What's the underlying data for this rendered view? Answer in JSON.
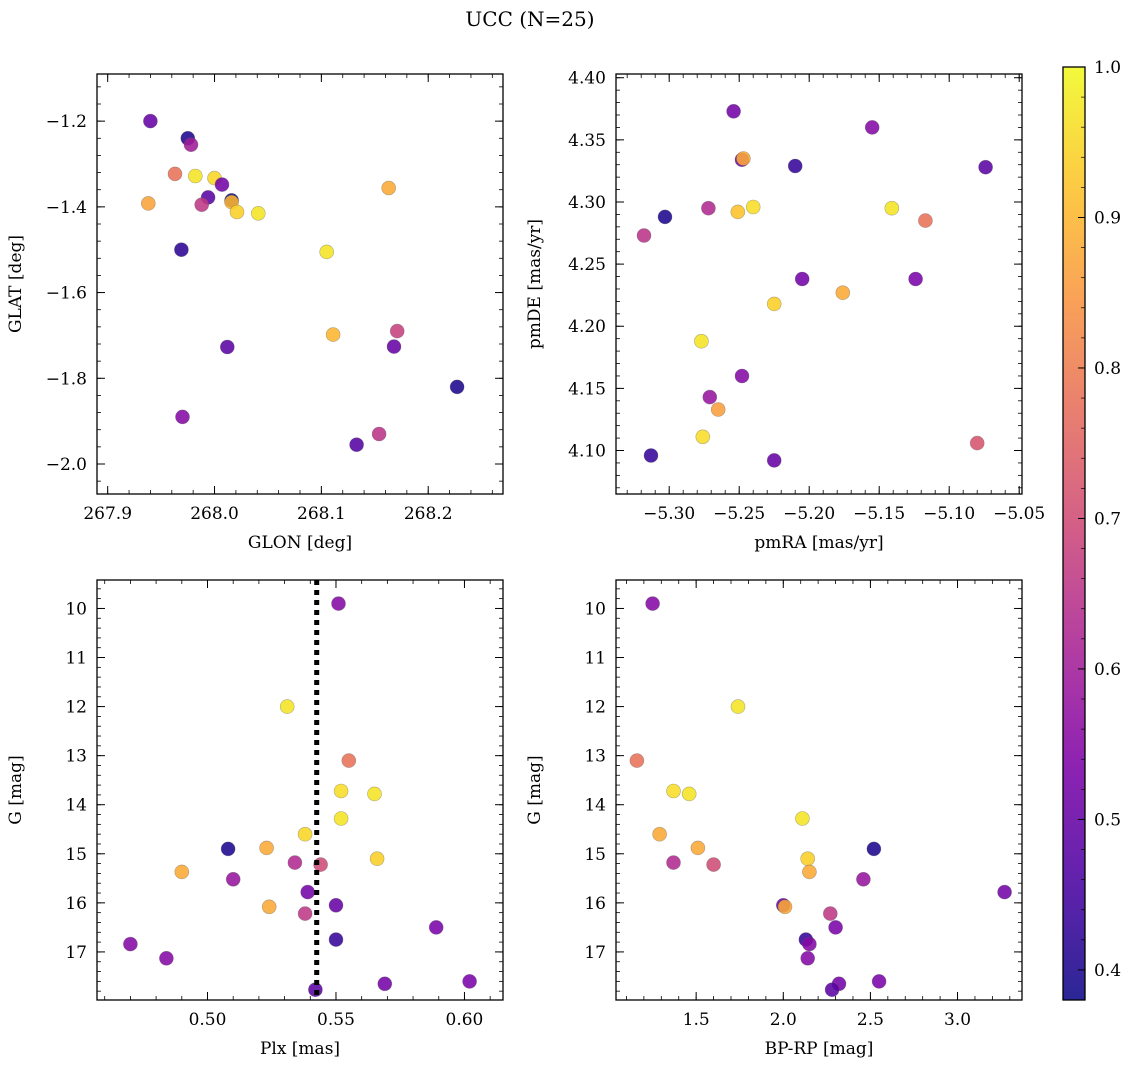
{
  "figure": {
    "title": "UCC (N=25)"
  },
  "colorbar": {
    "vmin": 0.38,
    "vmax": 1.0,
    "ticks": [
      0.4,
      0.5,
      0.6,
      0.7,
      0.8,
      0.9,
      1.0
    ],
    "tick_labels": [
      "0.4",
      "0.5",
      "0.6",
      "0.7",
      "0.8",
      "0.9",
      "1.0"
    ],
    "colormap": "plasma"
  },
  "chart_data": [
    {
      "type": "scatter",
      "id": "glon-glat",
      "xlabel": "GLON [deg]",
      "ylabel": "GLAT [deg]",
      "xlim": [
        267.89,
        268.27
      ],
      "ylim": [
        -2.07,
        -1.09
      ],
      "y_inverted": false,
      "xticks": [
        267.9,
        268.0,
        268.1,
        268.2
      ],
      "xtick_labels": [
        "267.9",
        "268.0",
        "268.1",
        "268.2"
      ],
      "yticks": [
        -2.0,
        -1.8,
        -1.6,
        -1.4,
        -1.2
      ],
      "ytick_labels": [
        "−2.0",
        "−1.8",
        "−1.6",
        "−1.4",
        "−1.2"
      ],
      "points": [
        {
          "x": 267.94,
          "y": -1.2,
          "c": 0.5
        },
        {
          "x": 267.975,
          "y": -1.24,
          "c": 0.4
        },
        {
          "x": 267.978,
          "y": -1.255,
          "c": 0.6
        },
        {
          "x": 267.963,
          "y": -1.323,
          "c": 0.78
        },
        {
          "x": 267.982,
          "y": -1.328,
          "c": 0.97
        },
        {
          "x": 268.0,
          "y": -1.333,
          "c": 0.95
        },
        {
          "x": 268.007,
          "y": -1.348,
          "c": 0.52
        },
        {
          "x": 267.994,
          "y": -1.378,
          "c": 0.48
        },
        {
          "x": 268.016,
          "y": -1.385,
          "c": 0.38
        },
        {
          "x": 268.016,
          "y": -1.389,
          "c": 0.9
        },
        {
          "x": 267.988,
          "y": -1.395,
          "c": 0.66
        },
        {
          "x": 267.938,
          "y": -1.392,
          "c": 0.87
        },
        {
          "x": 268.021,
          "y": -1.412,
          "c": 0.94
        },
        {
          "x": 268.041,
          "y": -1.415,
          "c": 0.97
        },
        {
          "x": 268.163,
          "y": -1.356,
          "c": 0.88
        },
        {
          "x": 267.969,
          "y": -1.5,
          "c": 0.42
        },
        {
          "x": 268.105,
          "y": -1.505,
          "c": 0.97
        },
        {
          "x": 268.111,
          "y": -1.698,
          "c": 0.9
        },
        {
          "x": 268.171,
          "y": -1.69,
          "c": 0.68
        },
        {
          "x": 268.012,
          "y": -1.727,
          "c": 0.48
        },
        {
          "x": 268.168,
          "y": -1.726,
          "c": 0.5
        },
        {
          "x": 268.227,
          "y": -1.82,
          "c": 0.4
        },
        {
          "x": 267.97,
          "y": -1.89,
          "c": 0.55
        },
        {
          "x": 268.133,
          "y": -1.955,
          "c": 0.47
        },
        {
          "x": 268.154,
          "y": -1.93,
          "c": 0.65
        }
      ]
    },
    {
      "type": "scatter",
      "id": "pmra-pmde",
      "xlabel": "pmRA [mas/yr]",
      "ylabel": "pmDE [mas/yr]",
      "xlim": [
        -5.338,
        -5.048
      ],
      "ylim": [
        4.065,
        4.403
      ],
      "y_inverted": false,
      "xticks": [
        -5.3,
        -5.25,
        -5.2,
        -5.15,
        -5.1,
        -5.05
      ],
      "xtick_labels": [
        "−5.30",
        "−5.25",
        "−5.20",
        "−5.15",
        "−5.10",
        "−5.05"
      ],
      "yticks": [
        4.1,
        4.15,
        4.2,
        4.25,
        4.3,
        4.35,
        4.4
      ],
      "ytick_labels": [
        "4.10",
        "4.15",
        "4.20",
        "4.25",
        "4.30",
        "4.35",
        "4.40"
      ],
      "points": [
        {
          "x": -5.254,
          "y": 4.373,
          "c": 0.52
        },
        {
          "x": -5.155,
          "y": 4.36,
          "c": 0.55
        },
        {
          "x": -5.248,
          "y": 4.334,
          "c": 0.52
        },
        {
          "x": -5.247,
          "y": 4.335,
          "c": 0.88
        },
        {
          "x": -5.21,
          "y": 4.329,
          "c": 0.43
        },
        {
          "x": -5.074,
          "y": 4.328,
          "c": 0.48
        },
        {
          "x": -5.272,
          "y": 4.295,
          "c": 0.63
        },
        {
          "x": -5.251,
          "y": 4.292,
          "c": 0.92
        },
        {
          "x": -5.24,
          "y": 4.296,
          "c": 0.96
        },
        {
          "x": -5.141,
          "y": 4.295,
          "c": 0.97
        },
        {
          "x": -5.303,
          "y": 4.288,
          "c": 0.4
        },
        {
          "x": -5.117,
          "y": 4.285,
          "c": 0.78
        },
        {
          "x": -5.318,
          "y": 4.273,
          "c": 0.65
        },
        {
          "x": -5.205,
          "y": 4.238,
          "c": 0.52
        },
        {
          "x": -5.124,
          "y": 4.238,
          "c": 0.53
        },
        {
          "x": -5.176,
          "y": 4.227,
          "c": 0.88
        },
        {
          "x": -5.225,
          "y": 4.218,
          "c": 0.94
        },
        {
          "x": -5.277,
          "y": 4.188,
          "c": 0.97
        },
        {
          "x": -5.248,
          "y": 4.16,
          "c": 0.55
        },
        {
          "x": -5.271,
          "y": 4.143,
          "c": 0.58
        },
        {
          "x": -5.265,
          "y": 4.133,
          "c": 0.86
        },
        {
          "x": -5.276,
          "y": 4.111,
          "c": 0.96
        },
        {
          "x": -5.313,
          "y": 4.096,
          "c": 0.43
        },
        {
          "x": -5.225,
          "y": 4.092,
          "c": 0.5
        },
        {
          "x": -5.08,
          "y": 4.106,
          "c": 0.72
        }
      ]
    },
    {
      "type": "scatter",
      "id": "plx-g",
      "xlabel": "Plx [mas]",
      "ylabel": "G [mag]",
      "xlim": [
        0.457,
        0.615
      ],
      "ylim": [
        17.98,
        9.42
      ],
      "y_inverted": true,
      "xticks": [
        0.5,
        0.55,
        0.6
      ],
      "xtick_labels": [
        "0.50",
        "0.55",
        "0.60"
      ],
      "yticks": [
        10,
        11,
        12,
        13,
        14,
        15,
        16,
        17
      ],
      "ytick_labels": [
        "10",
        "11",
        "12",
        "13",
        "14",
        "15",
        "16",
        "17"
      ],
      "vline": {
        "x": 0.5425,
        "style": "dotted",
        "color": "#000000"
      },
      "points": [
        {
          "x": 0.551,
          "y": 9.9,
          "c": 0.55
        },
        {
          "x": 0.531,
          "y": 12.0,
          "c": 0.97
        },
        {
          "x": 0.555,
          "y": 13.1,
          "c": 0.78
        },
        {
          "x": 0.552,
          "y": 13.72,
          "c": 0.96
        },
        {
          "x": 0.565,
          "y": 13.78,
          "c": 0.97
        },
        {
          "x": 0.552,
          "y": 14.28,
          "c": 0.97
        },
        {
          "x": 0.538,
          "y": 14.6,
          "c": 0.95
        },
        {
          "x": 0.523,
          "y": 14.88,
          "c": 0.88
        },
        {
          "x": 0.508,
          "y": 14.9,
          "c": 0.4
        },
        {
          "x": 0.534,
          "y": 15.18,
          "c": 0.63
        },
        {
          "x": 0.544,
          "y": 15.22,
          "c": 0.7
        },
        {
          "x": 0.566,
          "y": 15.1,
          "c": 0.94
        },
        {
          "x": 0.49,
          "y": 15.37,
          "c": 0.88
        },
        {
          "x": 0.51,
          "y": 15.52,
          "c": 0.58
        },
        {
          "x": 0.539,
          "y": 15.78,
          "c": 0.52
        },
        {
          "x": 0.55,
          "y": 16.05,
          "c": 0.5
        },
        {
          "x": 0.524,
          "y": 16.08,
          "c": 0.88
        },
        {
          "x": 0.538,
          "y": 16.22,
          "c": 0.66
        },
        {
          "x": 0.589,
          "y": 16.5,
          "c": 0.53
        },
        {
          "x": 0.55,
          "y": 16.75,
          "c": 0.43
        },
        {
          "x": 0.47,
          "y": 16.84,
          "c": 0.55
        },
        {
          "x": 0.484,
          "y": 17.13,
          "c": 0.55
        },
        {
          "x": 0.569,
          "y": 17.65,
          "c": 0.52
        },
        {
          "x": 0.602,
          "y": 17.6,
          "c": 0.53
        },
        {
          "x": 0.542,
          "y": 17.77,
          "c": 0.48
        }
      ]
    },
    {
      "type": "scatter",
      "id": "bprp-g",
      "xlabel": "BP-RP [mag]",
      "ylabel": "G [mag]",
      "xlim": [
        1.04,
        3.37
      ],
      "ylim": [
        17.98,
        9.42
      ],
      "y_inverted": true,
      "xticks": [
        1.5,
        2.0,
        2.5,
        3.0
      ],
      "xtick_labels": [
        "1.5",
        "2.0",
        "2.5",
        "3.0"
      ],
      "yticks": [
        10,
        11,
        12,
        13,
        14,
        15,
        16,
        17
      ],
      "ytick_labels": [
        "10",
        "11",
        "12",
        "13",
        "14",
        "15",
        "16",
        "17"
      ],
      "points": [
        {
          "x": 1.25,
          "y": 9.9,
          "c": 0.55
        },
        {
          "x": 1.74,
          "y": 12.0,
          "c": 0.97
        },
        {
          "x": 1.16,
          "y": 13.1,
          "c": 0.78
        },
        {
          "x": 1.37,
          "y": 13.72,
          "c": 0.96
        },
        {
          "x": 1.46,
          "y": 13.78,
          "c": 0.97
        },
        {
          "x": 2.11,
          "y": 14.28,
          "c": 0.97
        },
        {
          "x": 1.29,
          "y": 14.6,
          "c": 0.88
        },
        {
          "x": 1.51,
          "y": 14.88,
          "c": 0.88
        },
        {
          "x": 2.52,
          "y": 14.9,
          "c": 0.4
        },
        {
          "x": 1.37,
          "y": 15.18,
          "c": 0.63
        },
        {
          "x": 1.6,
          "y": 15.22,
          "c": 0.7
        },
        {
          "x": 2.14,
          "y": 15.1,
          "c": 0.94
        },
        {
          "x": 2.15,
          "y": 15.37,
          "c": 0.88
        },
        {
          "x": 2.46,
          "y": 15.52,
          "c": 0.58
        },
        {
          "x": 3.27,
          "y": 15.78,
          "c": 0.52
        },
        {
          "x": 2.0,
          "y": 16.05,
          "c": 0.5
        },
        {
          "x": 2.01,
          "y": 16.08,
          "c": 0.88
        },
        {
          "x": 2.27,
          "y": 16.22,
          "c": 0.66
        },
        {
          "x": 2.3,
          "y": 16.5,
          "c": 0.53
        },
        {
          "x": 2.13,
          "y": 16.75,
          "c": 0.43
        },
        {
          "x": 2.15,
          "y": 16.84,
          "c": 0.55
        },
        {
          "x": 2.14,
          "y": 17.13,
          "c": 0.55
        },
        {
          "x": 2.32,
          "y": 17.65,
          "c": 0.52
        },
        {
          "x": 2.55,
          "y": 17.6,
          "c": 0.53
        },
        {
          "x": 2.28,
          "y": 17.77,
          "c": 0.48
        }
      ]
    }
  ]
}
